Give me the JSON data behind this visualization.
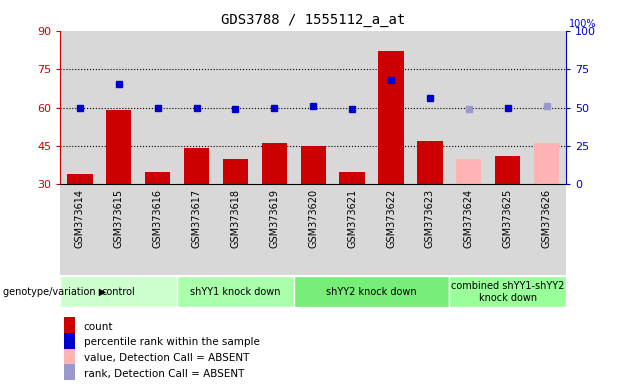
{
  "title": "GDS3788 / 1555112_a_at",
  "samples": [
    "GSM373614",
    "GSM373615",
    "GSM373616",
    "GSM373617",
    "GSM373618",
    "GSM373619",
    "GSM373620",
    "GSM373621",
    "GSM373622",
    "GSM373623",
    "GSM373624",
    "GSM373625",
    "GSM373626"
  ],
  "bar_values": [
    34,
    59,
    35,
    44,
    40,
    46,
    45,
    35,
    82,
    47,
    null,
    41,
    null
  ],
  "bar_absent_values": [
    null,
    null,
    null,
    null,
    null,
    null,
    null,
    null,
    null,
    null,
    40,
    null,
    46
  ],
  "rank_values": [
    50,
    65,
    50,
    50,
    49,
    50,
    51,
    49,
    68,
    56,
    null,
    50,
    null
  ],
  "rank_absent_values": [
    null,
    null,
    null,
    null,
    null,
    null,
    null,
    null,
    null,
    null,
    49,
    null,
    51
  ],
  "bar_color": "#cc0000",
  "bar_absent_color": "#ffb3b3",
  "rank_color": "#0000cc",
  "rank_absent_color": "#9999cc",
  "groups": [
    {
      "label": "control",
      "start": 0,
      "end": 2,
      "color": "#ccffcc"
    },
    {
      "label": "shYY1 knock down",
      "start": 3,
      "end": 5,
      "color": "#aaffaa"
    },
    {
      "label": "shYY2 knock down",
      "start": 6,
      "end": 9,
      "color": "#77ee77"
    },
    {
      "label": "combined shYY1-shYY2\nknock down",
      "start": 10,
      "end": 12,
      "color": "#99ff99"
    }
  ],
  "ylim_left": [
    30,
    90
  ],
  "ylim_right": [
    0,
    100
  ],
  "yticks_left": [
    30,
    45,
    60,
    75,
    90
  ],
  "yticks_right": [
    0,
    25,
    50,
    75,
    100
  ],
  "grid_lines": [
    45,
    60,
    75
  ],
  "col_bg_color": "#d8d8d8",
  "left_axis_color": "#cc0000",
  "right_axis_color": "#0000cc",
  "legend_items": [
    {
      "color": "#cc0000",
      "type": "rect",
      "label": "count"
    },
    {
      "color": "#0000cc",
      "type": "rect",
      "label": "percentile rank within the sample"
    },
    {
      "color": "#ffb3b3",
      "type": "rect",
      "label": "value, Detection Call = ABSENT"
    },
    {
      "color": "#9999cc",
      "type": "rect",
      "label": "rank, Detection Call = ABSENT"
    }
  ]
}
